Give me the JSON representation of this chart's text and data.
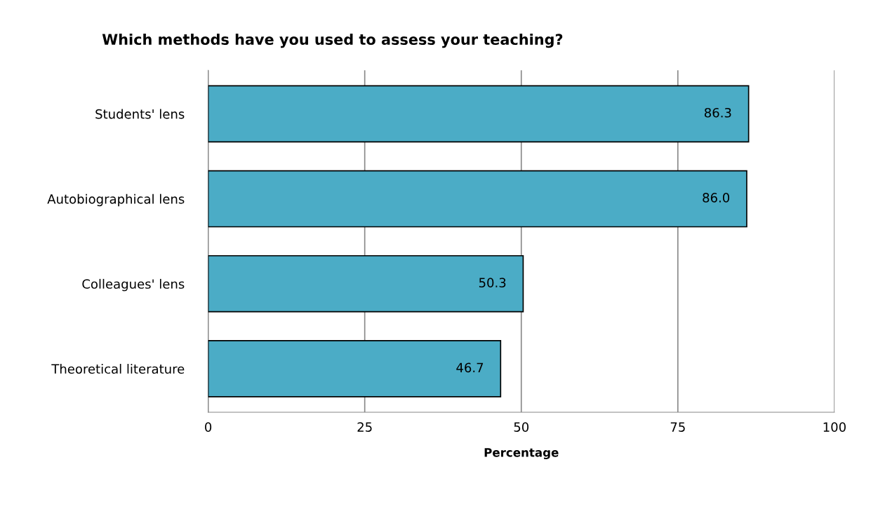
{
  "chart_data": {
    "type": "bar",
    "orientation": "horizontal",
    "title": "Which methods have you used to assess your teaching?",
    "xlabel": "Percentage",
    "categories": [
      "Students' lens",
      "Autobiographical lens",
      "Colleagues' lens",
      "Theoretical literature"
    ],
    "values": [
      86.3,
      86.0,
      50.3,
      46.7
    ],
    "value_labels": [
      "86.3",
      "86.0",
      "50.3",
      "46.7"
    ],
    "color": "#4bacc6",
    "xlim": [
      0,
      100
    ],
    "xticks": [
      0,
      25,
      50,
      75,
      100
    ],
    "grid": "x",
    "legend": false
  }
}
